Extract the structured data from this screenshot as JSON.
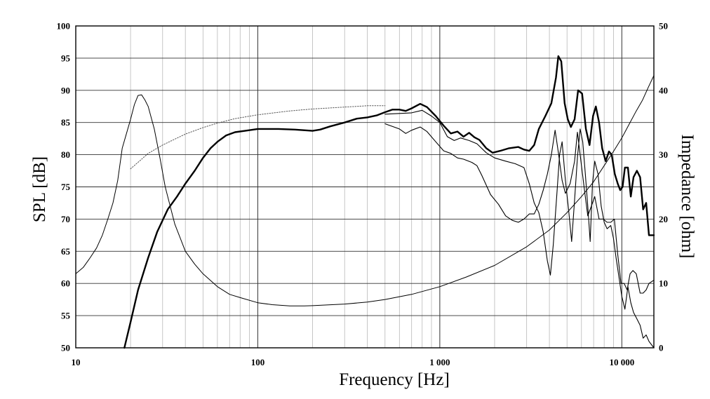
{
  "chart_data": {
    "type": "line",
    "title": "",
    "xlabel": "Frequency [Hz]",
    "ylabel_left": "SPL [dB]",
    "ylabel_right": "Impedance [ohm]",
    "x_scale": "log",
    "xlim": [
      10,
      15000
    ],
    "ylim_left": [
      50,
      100
    ],
    "ylim_right": [
      0,
      50
    ],
    "grid": true,
    "x_tick_labels": [
      {
        "value": 10,
        "label": "10"
      },
      {
        "value": 100,
        "label": "100"
      },
      {
        "value": 1000,
        "label": "1 000"
      },
      {
        "value": 10000,
        "label": "10 000"
      }
    ],
    "y_left_tick_labels": [
      "50",
      "55",
      "60",
      "65",
      "70",
      "75",
      "80",
      "85",
      "90",
      "95",
      "100"
    ],
    "y_right_tick_labels": [
      "0",
      "10",
      "20",
      "30",
      "40",
      "50"
    ],
    "series": [
      {
        "axis": "left",
        "stroke": "#000000",
        "width": 2.4,
        "dash": "",
        "points": [
          [
            18.5,
            50
          ],
          [
            20,
            54
          ],
          [
            22,
            59
          ],
          [
            25,
            64
          ],
          [
            28,
            68
          ],
          [
            32,
            71.5
          ],
          [
            36,
            73.5
          ],
          [
            40,
            75.5
          ],
          [
            45,
            77.5
          ],
          [
            50,
            79.5
          ],
          [
            55,
            81
          ],
          [
            60,
            82
          ],
          [
            67,
            83
          ],
          [
            75,
            83.5
          ],
          [
            85,
            83.7
          ],
          [
            100,
            84
          ],
          [
            130,
            84
          ],
          [
            160,
            83.9
          ],
          [
            200,
            83.7
          ],
          [
            220,
            83.9
          ],
          [
            250,
            84.4
          ],
          [
            300,
            85
          ],
          [
            350,
            85.6
          ],
          [
            400,
            85.8
          ],
          [
            450,
            86.1
          ],
          [
            500,
            86.6
          ],
          [
            550,
            87
          ],
          [
            600,
            87
          ],
          [
            650,
            86.8
          ],
          [
            700,
            87.2
          ],
          [
            780,
            87.9
          ],
          [
            850,
            87.4
          ],
          [
            950,
            86
          ],
          [
            1050,
            84.5
          ],
          [
            1150,
            83.3
          ],
          [
            1250,
            83.6
          ],
          [
            1350,
            82.8
          ],
          [
            1450,
            83.4
          ],
          [
            1550,
            82.7
          ],
          [
            1650,
            82.3
          ],
          [
            1800,
            81
          ],
          [
            1950,
            80.3
          ],
          [
            2150,
            80.6
          ],
          [
            2400,
            81
          ],
          [
            2700,
            81.2
          ],
          [
            2900,
            80.8
          ],
          [
            3100,
            80.6
          ],
          [
            3300,
            81.5
          ],
          [
            3500,
            84
          ],
          [
            3800,
            86
          ],
          [
            4100,
            88
          ],
          [
            4350,
            92
          ],
          [
            4480,
            95.3
          ],
          [
            4650,
            94.5
          ],
          [
            4850,
            88
          ],
          [
            5050,
            85.5
          ],
          [
            5250,
            84.3
          ],
          [
            5500,
            85.5
          ],
          [
            5750,
            90
          ],
          [
            6050,
            89.5
          ],
          [
            6350,
            84
          ],
          [
            6650,
            81.5
          ],
          [
            6950,
            86
          ],
          [
            7200,
            87.5
          ],
          [
            7500,
            85
          ],
          [
            7800,
            81
          ],
          [
            8150,
            79
          ],
          [
            8500,
            80.5
          ],
          [
            8800,
            80
          ],
          [
            9150,
            77
          ],
          [
            9500,
            75.5
          ],
          [
            9800,
            74.5
          ],
          [
            10100,
            75
          ],
          [
            10400,
            78
          ],
          [
            10800,
            78
          ],
          [
            11200,
            73.5
          ],
          [
            11600,
            76.5
          ],
          [
            12100,
            77.5
          ],
          [
            12600,
            76.5
          ],
          [
            13100,
            71.5
          ],
          [
            13600,
            72.5
          ],
          [
            14100,
            67.5
          ],
          [
            15000,
            67.5
          ]
        ]
      },
      {
        "axis": "left",
        "stroke": "#000000",
        "width": 1.1,
        "dash": "",
        "points": [
          [
            500,
            86.3
          ],
          [
            600,
            86.4
          ],
          [
            700,
            86.5
          ],
          [
            800,
            86.9
          ],
          [
            900,
            86
          ],
          [
            1000,
            85
          ],
          [
            1100,
            82.8
          ],
          [
            1200,
            82.2
          ],
          [
            1300,
            82.6
          ],
          [
            1450,
            82.2
          ],
          [
            1600,
            81.7
          ],
          [
            1800,
            80.3
          ],
          [
            2000,
            79.5
          ],
          [
            2300,
            79
          ],
          [
            2600,
            78.6
          ],
          [
            2900,
            78
          ],
          [
            3100,
            75.5
          ],
          [
            3300,
            72.5
          ],
          [
            3500,
            71
          ],
          [
            3700,
            68
          ],
          [
            3900,
            63.5
          ],
          [
            4050,
            61.3
          ],
          [
            4200,
            66
          ],
          [
            4400,
            74
          ],
          [
            4550,
            80
          ],
          [
            4700,
            82
          ],
          [
            4900,
            76
          ],
          [
            5100,
            71.5
          ],
          [
            5300,
            66.5
          ],
          [
            5500,
            73
          ],
          [
            5700,
            79.5
          ],
          [
            5900,
            84
          ],
          [
            6100,
            82
          ],
          [
            6300,
            77
          ],
          [
            6500,
            72
          ],
          [
            6700,
            66.5
          ],
          [
            6900,
            75.5
          ],
          [
            7100,
            79
          ],
          [
            7400,
            77
          ],
          [
            7700,
            72
          ],
          [
            8000,
            69.5
          ],
          [
            8300,
            68.5
          ],
          [
            8700,
            69
          ],
          [
            9000,
            67
          ],
          [
            9300,
            64
          ],
          [
            9700,
            60.5
          ],
          [
            10000,
            58
          ],
          [
            10400,
            56
          ],
          [
            10800,
            59.5
          ],
          [
            11200,
            57
          ],
          [
            11600,
            55.5
          ],
          [
            12100,
            54.5
          ],
          [
            12600,
            53.5
          ],
          [
            13100,
            51.5
          ],
          [
            13600,
            52
          ],
          [
            14100,
            51
          ],
          [
            15000,
            50
          ]
        ]
      },
      {
        "axis": "left",
        "stroke": "#000000",
        "width": 1.1,
        "dash": "",
        "points": [
          [
            500,
            84.8
          ],
          [
            600,
            84
          ],
          [
            650,
            83.3
          ],
          [
            700,
            83.8
          ],
          [
            780,
            84.3
          ],
          [
            850,
            83.6
          ],
          [
            950,
            82
          ],
          [
            1050,
            80.6
          ],
          [
            1150,
            80.2
          ],
          [
            1250,
            79.5
          ],
          [
            1350,
            79.3
          ],
          [
            1500,
            78.8
          ],
          [
            1600,
            78.3
          ],
          [
            1700,
            76.8
          ],
          [
            1900,
            73.8
          ],
          [
            2100,
            72.3
          ],
          [
            2300,
            70.5
          ],
          [
            2500,
            69.8
          ],
          [
            2700,
            69.5
          ],
          [
            2900,
            70
          ],
          [
            3100,
            70.8
          ],
          [
            3300,
            70.8
          ],
          [
            3500,
            72.3
          ],
          [
            3700,
            74.5
          ],
          [
            3900,
            77
          ],
          [
            4100,
            80
          ],
          [
            4300,
            83.8
          ],
          [
            4500,
            80
          ],
          [
            4700,
            76
          ],
          [
            4900,
            74
          ],
          [
            5200,
            75.5
          ],
          [
            5500,
            79
          ],
          [
            5700,
            83.5
          ],
          [
            5900,
            80
          ],
          [
            6200,
            75
          ],
          [
            6500,
            70.5
          ],
          [
            6800,
            72
          ],
          [
            7100,
            73.5
          ],
          [
            7500,
            70
          ],
          [
            7900,
            70
          ],
          [
            8300,
            69.5
          ],
          [
            8700,
            69.5
          ],
          [
            9100,
            70
          ],
          [
            9500,
            64.5
          ],
          [
            9900,
            60
          ],
          [
            10300,
            60
          ],
          [
            10700,
            59
          ],
          [
            11100,
            61.5
          ],
          [
            11500,
            62
          ],
          [
            12000,
            61.5
          ],
          [
            12600,
            58.5
          ],
          [
            13100,
            58.5
          ],
          [
            13600,
            59
          ],
          [
            14100,
            60
          ],
          [
            15000,
            60.5
          ]
        ]
      },
      {
        "axis": "left",
        "stroke": "#555555",
        "width": 1,
        "dash": "1.5 2",
        "points": [
          [
            20,
            77.8
          ],
          [
            25,
            80.2
          ],
          [
            30,
            81.5
          ],
          [
            40,
            83.2
          ],
          [
            50,
            84.2
          ],
          [
            60,
            84.9
          ],
          [
            75,
            85.6
          ],
          [
            100,
            86.2
          ],
          [
            150,
            86.8
          ],
          [
            200,
            87.1
          ],
          [
            300,
            87.4
          ],
          [
            400,
            87.6
          ],
          [
            500,
            87.6
          ]
        ]
      },
      {
        "axis": "right",
        "stroke": "#000000",
        "width": 1,
        "dash": "",
        "points": [
          [
            10,
            11.5
          ],
          [
            11,
            12.5
          ],
          [
            12,
            14
          ],
          [
            13,
            15.5
          ],
          [
            14,
            17.5
          ],
          [
            15,
            20
          ],
          [
            16,
            22.5
          ],
          [
            17,
            26
          ],
          [
            18,
            31
          ],
          [
            19,
            33.3
          ],
          [
            20,
            35.5
          ],
          [
            21,
            37.8
          ],
          [
            22,
            39.2
          ],
          [
            23,
            39.3
          ],
          [
            24,
            38.5
          ],
          [
            25,
            37.5
          ],
          [
            27,
            34
          ],
          [
            29,
            29.5
          ],
          [
            31,
            25
          ],
          [
            35,
            19.2
          ],
          [
            40,
            15
          ],
          [
            45,
            13
          ],
          [
            50,
            11.5
          ],
          [
            60,
            9.5
          ],
          [
            70,
            8.3
          ],
          [
            80,
            7.8
          ],
          [
            100,
            7
          ],
          [
            120,
            6.7
          ],
          [
            150,
            6.5
          ],
          [
            180,
            6.5
          ],
          [
            200,
            6.55
          ],
          [
            300,
            6.8
          ],
          [
            400,
            7.1
          ],
          [
            500,
            7.5
          ],
          [
            700,
            8.3
          ],
          [
            1000,
            9.5
          ],
          [
            1400,
            11
          ],
          [
            2000,
            12.8
          ],
          [
            3000,
            15.7
          ],
          [
            4000,
            18.3
          ],
          [
            5000,
            21
          ],
          [
            6000,
            23.5
          ],
          [
            7000,
            25.8
          ],
          [
            8000,
            28.3
          ],
          [
            9000,
            30.5
          ],
          [
            10000,
            32.6
          ],
          [
            11000,
            34.8
          ],
          [
            12000,
            36.8
          ],
          [
            13000,
            38.5
          ],
          [
            14000,
            40.5
          ],
          [
            15000,
            42.3
          ]
        ]
      }
    ]
  }
}
